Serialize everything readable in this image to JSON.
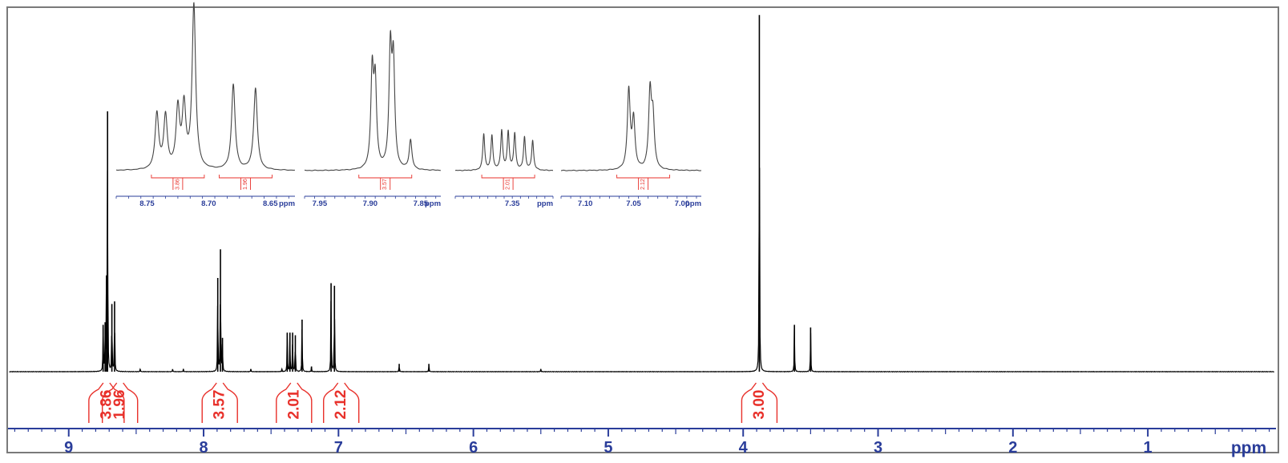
{
  "chart_data": {
    "type": "line",
    "title": "",
    "xlabel": "ppm",
    "ylabel": "",
    "x_reversed": true,
    "xlim": [
      9.45,
      0.05
    ],
    "x_ticks": [
      {
        "value": 9,
        "label": "9"
      },
      {
        "value": 8,
        "label": "8"
      },
      {
        "value": 7,
        "label": "7"
      },
      {
        "value": 6,
        "label": "6"
      },
      {
        "value": 5,
        "label": "5"
      },
      {
        "value": 4,
        "label": "4"
      },
      {
        "value": 3,
        "label": "3"
      },
      {
        "value": 2,
        "label": "2"
      },
      {
        "value": 1,
        "label": "1"
      }
    ],
    "x_unit_label": "ppm",
    "y_relative": true,
    "peaks": [
      {
        "ppm": 8.745,
        "height": 0.18
      },
      {
        "ppm": 8.73,
        "height": 0.19
      },
      {
        "ppm": 8.72,
        "height": 0.37
      },
      {
        "ppm": 8.712,
        "height": 1.0
      },
      {
        "ppm": 8.68,
        "height": 0.26
      },
      {
        "ppm": 8.66,
        "height": 0.27
      },
      {
        "ppm": 8.47,
        "height": 0.01
      },
      {
        "ppm": 8.23,
        "height": 0.01
      },
      {
        "ppm": 8.15,
        "height": 0.01
      },
      {
        "ppm": 7.895,
        "height": 0.36
      },
      {
        "ppm": 7.875,
        "height": 0.47
      },
      {
        "ppm": 7.86,
        "height": 0.13
      },
      {
        "ppm": 7.65,
        "height": 0.01
      },
      {
        "ppm": 7.42,
        "height": 0.01
      },
      {
        "ppm": 7.38,
        "height": 0.15
      },
      {
        "ppm": 7.36,
        "height": 0.15
      },
      {
        "ppm": 7.34,
        "height": 0.15
      },
      {
        "ppm": 7.32,
        "height": 0.14
      },
      {
        "ppm": 7.27,
        "height": 0.2
      },
      {
        "ppm": 7.2,
        "height": 0.02
      },
      {
        "ppm": 7.055,
        "height": 0.34
      },
      {
        "ppm": 7.03,
        "height": 0.33
      },
      {
        "ppm": 6.55,
        "height": 0.03
      },
      {
        "ppm": 6.33,
        "height": 0.03
      },
      {
        "ppm": 5.5,
        "height": 0.01
      },
      {
        "ppm": 3.88,
        "height": 1.37
      },
      {
        "ppm": 3.62,
        "height": 0.18
      },
      {
        "ppm": 3.5,
        "height": 0.17
      }
    ],
    "integrals": [
      {
        "ppm": 8.72,
        "value": "3.86"
      },
      {
        "ppm": 8.62,
        "value": "1.96"
      },
      {
        "ppm": 7.88,
        "value": "3.57"
      },
      {
        "ppm": 7.33,
        "value": "2.01"
      },
      {
        "ppm": 6.98,
        "value": "2.12"
      },
      {
        "ppm": 3.88,
        "value": "3.00"
      }
    ],
    "insets": [
      {
        "x_range": [
          8.775,
          8.63
        ],
        "ticks": [
          {
            "value": 8.75,
            "label": "8.75"
          },
          {
            "value": 8.7,
            "label": "8.70"
          },
          {
            "value": 8.65,
            "label": "8.65"
          }
        ],
        "unit_label": "ppm",
        "integrals": [
          {
            "ppm": 8.725,
            "value": "3.86"
          },
          {
            "ppm": 8.67,
            "value": "1.96"
          }
        ],
        "peaks": [
          {
            "ppm": 8.742,
            "height": 0.34
          },
          {
            "ppm": 8.735,
            "height": 0.32
          },
          {
            "ppm": 8.725,
            "height": 0.36
          },
          {
            "ppm": 8.72,
            "height": 0.37
          },
          {
            "ppm": 8.712,
            "height": 1.0
          },
          {
            "ppm": 8.68,
            "height": 0.52
          },
          {
            "ppm": 8.662,
            "height": 0.5
          }
        ]
      },
      {
        "x_range": [
          7.965,
          7.83
        ],
        "ticks": [
          {
            "value": 7.95,
            "label": "7.95"
          },
          {
            "value": 7.9,
            "label": "7.90"
          },
          {
            "value": 7.85,
            "label": "7.85"
          }
        ],
        "unit_label": "ppm",
        "integrals": [
          {
            "ppm": 7.885,
            "value": "3.57"
          }
        ],
        "peaks": [
          {
            "ppm": 7.898,
            "height": 0.58
          },
          {
            "ppm": 7.895,
            "height": 0.5
          },
          {
            "ppm": 7.88,
            "height": 0.7
          },
          {
            "ppm": 7.877,
            "height": 0.62
          },
          {
            "ppm": 7.86,
            "height": 0.18
          }
        ]
      },
      {
        "x_range": [
          7.42,
          7.3
        ],
        "ticks": [
          {
            "value": 7.35,
            "label": "7.35"
          }
        ],
        "unit_label": "ppm",
        "integrals": [
          {
            "ppm": 7.355,
            "value": "2.01"
          }
        ],
        "peaks": [
          {
            "ppm": 7.385,
            "height": 0.22
          },
          {
            "ppm": 7.375,
            "height": 0.21
          },
          {
            "ppm": 7.363,
            "height": 0.24
          },
          {
            "ppm": 7.355,
            "height": 0.23
          },
          {
            "ppm": 7.347,
            "height": 0.22
          },
          {
            "ppm": 7.335,
            "height": 0.2
          },
          {
            "ppm": 7.325,
            "height": 0.18
          }
        ]
      },
      {
        "x_range": [
          7.125,
          6.98
        ],
        "ticks": [
          {
            "value": 7.1,
            "label": "7.10"
          },
          {
            "value": 7.05,
            "label": "7.05"
          },
          {
            "value": 7.0,
            "label": "7.00"
          }
        ],
        "unit_label": "ppm",
        "integrals": [
          {
            "ppm": 7.04,
            "value": "2.12"
          }
        ],
        "peaks": [
          {
            "ppm": 7.055,
            "height": 0.48
          },
          {
            "ppm": 7.05,
            "height": 0.3
          },
          {
            "ppm": 7.033,
            "height": 0.46
          },
          {
            "ppm": 7.03,
            "height": 0.3
          }
        ]
      }
    ],
    "colors": {
      "spectrum": "#000000",
      "integral": "#e8312b",
      "axis": "#2a3d9a",
      "frame": "#7a7a7a"
    }
  }
}
